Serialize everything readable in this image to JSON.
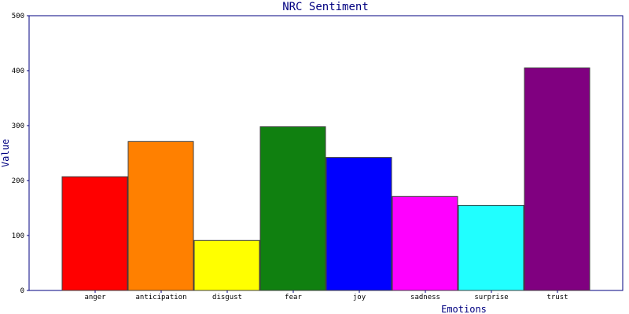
{
  "chart_data": {
    "type": "bar",
    "title": "NRC Sentiment",
    "xlabel": "Emotions",
    "ylabel": "Value",
    "ylim": [
      0,
      500
    ],
    "yticks": [
      0,
      100,
      200,
      300,
      400,
      500
    ],
    "grid": false,
    "legend": "none",
    "categories": [
      "anger",
      "anticipation",
      "disgust",
      "fear",
      "joy",
      "sadness",
      "surprise",
      "trust"
    ],
    "values": [
      207,
      271,
      91,
      298,
      242,
      171,
      155,
      405
    ],
    "colors": [
      "#ff0000",
      "#ff8000",
      "#ffff00",
      "#108010",
      "#0000ff",
      "#ff00ff",
      "#20ffff",
      "#800080"
    ]
  }
}
